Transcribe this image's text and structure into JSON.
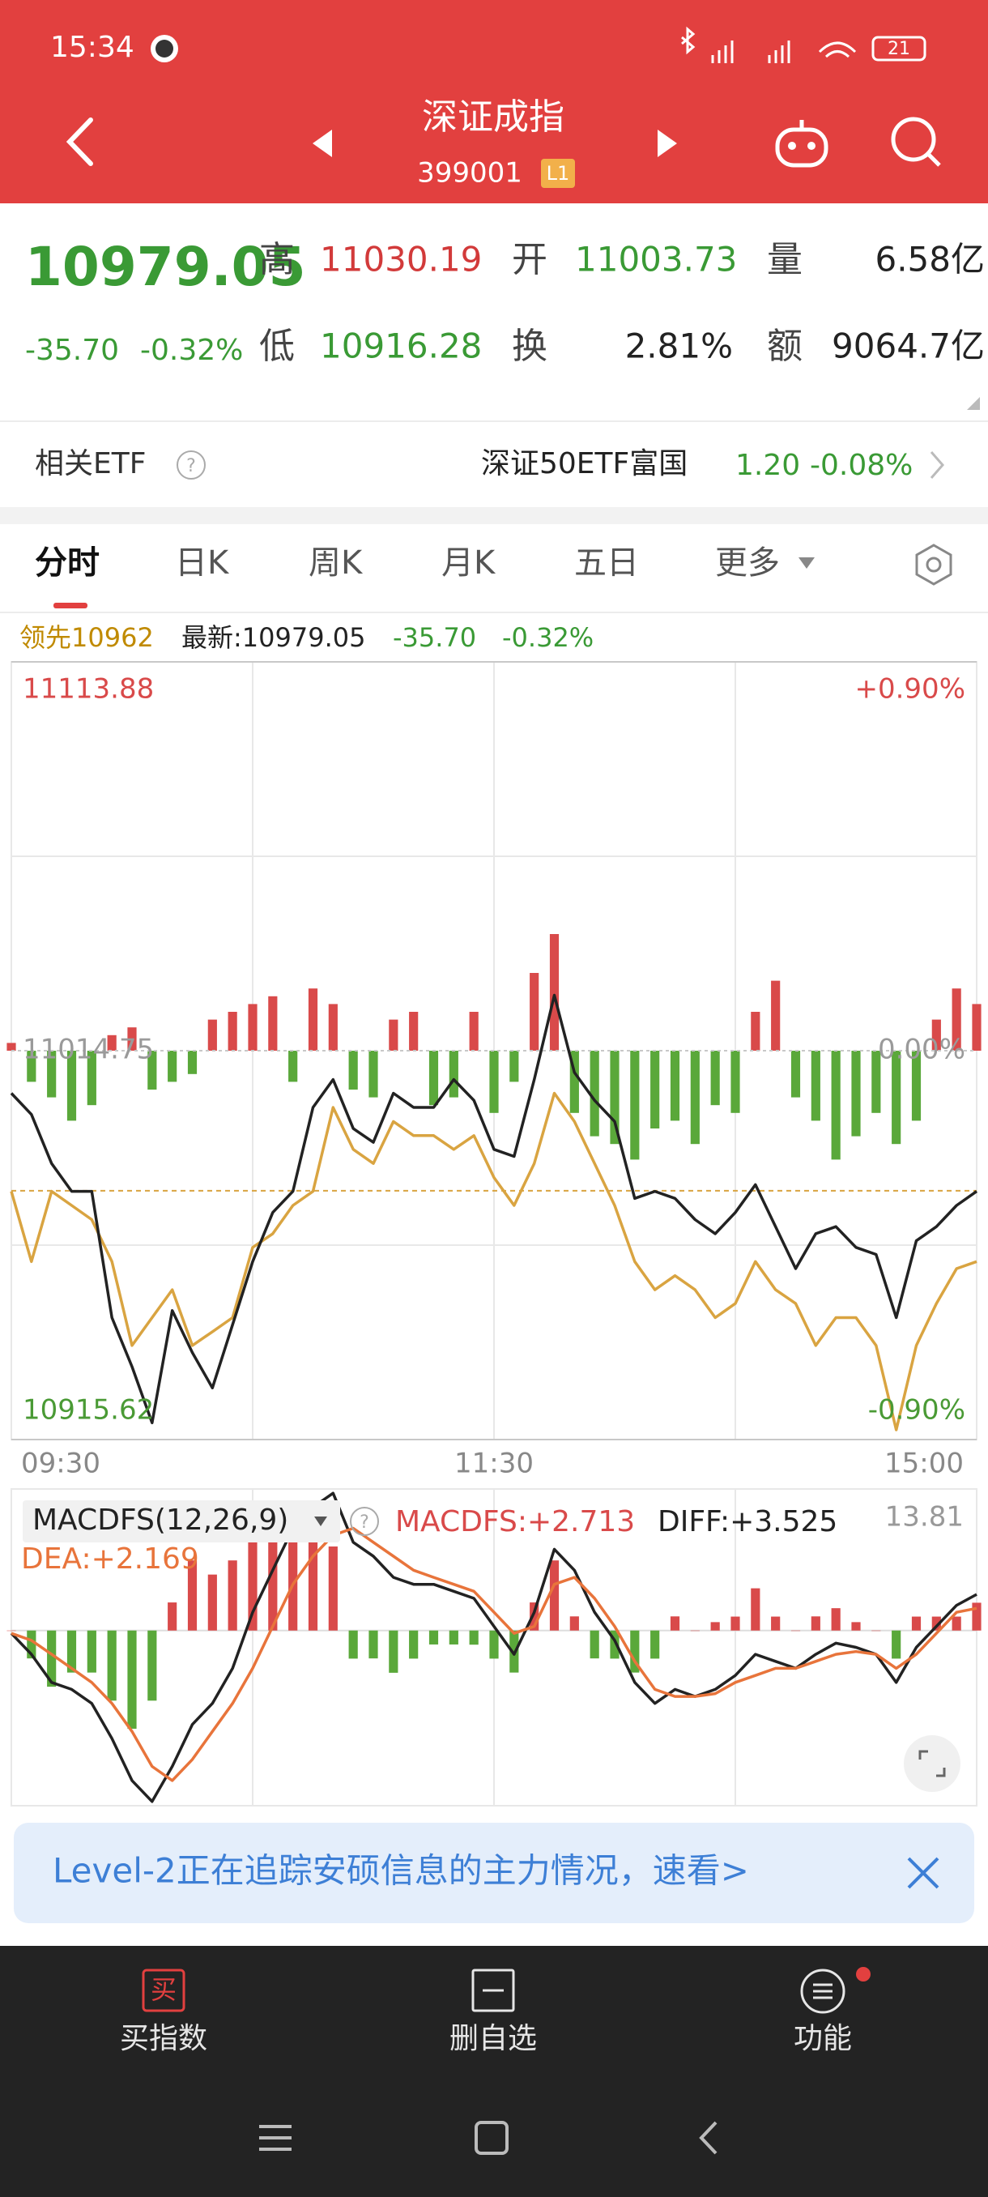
{
  "status_bar": {
    "time": "15:34",
    "battery": "21"
  },
  "header": {
    "title": "深证成指",
    "code": "399001",
    "badge": "L1"
  },
  "quote": {
    "price": "10979.05",
    "change": "-35.70",
    "change_pct": "-0.32%",
    "high_label": "高",
    "high": "11030.19",
    "open_label": "开",
    "open": "11003.73",
    "volume_label": "量",
    "volume": "6.58亿",
    "low_label": "低",
    "low": "10916.28",
    "turnover_label": "换",
    "turnover": "2.81%",
    "amount_label": "额",
    "amount": "9064.7亿"
  },
  "etf": {
    "label": "相关ETF",
    "name": "深证50ETF富国",
    "price": "1.20",
    "change_pct": "-0.08%"
  },
  "tabs": [
    "分时",
    "日K",
    "周K",
    "月K",
    "五日",
    "更多"
  ],
  "info": {
    "lead": "领先10962",
    "latest": "最新:10979.05",
    "change": "-35.70",
    "change_pct": "-0.32%"
  },
  "chart_data": [
    {
      "type": "line",
      "ylim": [
        10915.62,
        11113.88
      ],
      "yticks": [
        11113.88,
        11014.75,
        10915.62
      ],
      "tick_colors": [
        "#d94a4a",
        "#9a9a9a",
        "#4a9a35"
      ],
      "pct_ticks": [
        {
          "value": 11113.88,
          "label": "+0.90%"
        },
        {
          "value": 11014.75,
          "label": "0.00%"
        },
        {
          "value": 10915.62,
          "label": "-0.90%"
        }
      ],
      "xlabels": [
        "09:30",
        "11:30",
        "15:00"
      ],
      "ref_line": 10979.05,
      "ref_color": "#d9a441",
      "y2lim": [
        -250,
        250
      ],
      "series": [
        {
          "color": "#222222",
          "values": [
            11003.9,
            10998.5,
            10986.0,
            10978.9,
            10978.9,
            10946.7,
            10934.2,
            10919.9,
            10948.5,
            10937.8,
            10928.8,
            10944.9,
            10961.0,
            10973.5,
            10978.9,
            11000.3,
            11007.4,
            10994.9,
            10991.4,
            11003.9,
            11000.3,
            11000.3,
            11007.4,
            11002.1,
            10989.6,
            10987.8,
            11007.4,
            11028.9,
            11009.2,
            11002.1,
            10996.7,
            10977.1,
            10978.9,
            10977.1,
            10971.7,
            10968.1,
            10973.5,
            10980.6,
            10969.9,
            10959.2,
            10968.1,
            10969.9,
            10964.6,
            10962.8,
            10946.7,
            10966.3,
            10969.9,
            10975.3,
            10978.9
          ]
        },
        {
          "color": "#d9a441",
          "values": [
            10978.9,
            10961.0,
            10978.9,
            10975.3,
            10971.7,
            10961.0,
            10939.6,
            10946.7,
            10953.8,
            10939.6,
            10943.1,
            10946.7,
            10964.6,
            10968.1,
            10975.3,
            10978.9,
            11000.3,
            10989.6,
            10986.0,
            10996.7,
            10993.1,
            10993.1,
            10989.6,
            10993.1,
            10982.4,
            10975.3,
            10986.0,
            11003.9,
            10996.7,
            10986.0,
            10975.3,
            10961.0,
            10953.8,
            10957.4,
            10953.8,
            10946.7,
            10950.3,
            10961.0,
            10953.8,
            10950.3,
            10939.6,
            10946.7,
            10946.7,
            10939.6,
            10918.1,
            10939.6,
            10950.3,
            10959.2,
            10961.0
          ]
        },
        {
          "type": "bar",
          "axis": "y2",
          "up_color": "#d94a4a",
          "down_color": "#5aa83a",
          "values": [
            5,
            -20,
            -30,
            -45,
            -35,
            10,
            15,
            -25,
            -20,
            -15,
            20,
            25,
            30,
            35,
            -20,
            40,
            30,
            -25,
            -30,
            20,
            25,
            -35,
            -30,
            25,
            -40,
            -20,
            50,
            75,
            -40,
            -55,
            -60,
            -70,
            -50,
            -45,
            -60,
            -35,
            -40,
            25,
            45,
            -30,
            -45,
            -70,
            -55,
            -40,
            -60,
            -45,
            20,
            40,
            30
          ]
        }
      ]
    },
    {
      "type": "macd",
      "title": "MACDFS(12,26,9)",
      "ylim": [
        -17.09,
        13.81
      ],
      "yticks": [
        13.81
      ],
      "legend": [
        "MACDFS:+2.713",
        "DIFF:+3.525",
        "DEA:+2.169"
      ],
      "series": [
        {
          "type": "bar",
          "up_color": "#d94a4a",
          "down_color": "#5aa83a",
          "values": [
            0,
            -2.72,
            -5.48,
            -4.1,
            -4.1,
            -6.84,
            -9.58,
            -6.84,
            2.74,
            6.84,
            5.46,
            6.84,
            10.94,
            10.94,
            10.94,
            9.56,
            8.2,
            -2.74,
            -2.72,
            -4.12,
            -2.74,
            -1.36,
            -1.36,
            -1.38,
            -2.74,
            -4.1,
            2.74,
            6.84,
            1.38,
            -2.72,
            -2.74,
            -4.1,
            -2.74,
            1.38,
            0,
            0.82,
            1.36,
            4.12,
            1.36,
            0,
            1.38,
            2.18,
            0.82,
            0,
            -2.74,
            1.36,
            1.36,
            1.36,
            2.713
          ]
        },
        {
          "color": "#222222",
          "values": [
            -0.27,
            -2.32,
            -5.06,
            -5.74,
            -7.11,
            -10.53,
            -14.63,
            -16.68,
            -13.26,
            -9.16,
            -7.11,
            -3.69,
            1.78,
            5.88,
            9.98,
            12.03,
            13.4,
            8.61,
            7.25,
            5.19,
            4.51,
            4.51,
            3.83,
            3.14,
            0.41,
            -2.32,
            1.78,
            7.93,
            5.88,
            1.78,
            -0.96,
            -5.06,
            -7.11,
            -5.74,
            -6.43,
            -5.74,
            -4.38,
            -2.32,
            -3.01,
            -3.69,
            -2.32,
            -1.23,
            -1.64,
            -2.32,
            -5.06,
            -1.64,
            0.41,
            2.46,
            3.525
          ]
        },
        {
          "color": "#e8743b",
          "values": [
            -0.27,
            -0.96,
            -2.32,
            -3.69,
            -5.06,
            -7.11,
            -9.84,
            -13.26,
            -14.63,
            -12.58,
            -9.84,
            -7.11,
            -3.69,
            0.41,
            4.51,
            7.25,
            9.3,
            9.98,
            8.61,
            7.25,
            5.88,
            5.19,
            4.51,
            3.83,
            1.78,
            -0.27,
            0.41,
            4.51,
            5.19,
            3.14,
            0.41,
            -3.01,
            -5.74,
            -6.43,
            -6.43,
            -6.15,
            -5.06,
            -4.38,
            -3.69,
            -3.69,
            -3.01,
            -2.32,
            -2.05,
            -2.32,
            -3.69,
            -2.32,
            -0.27,
            1.78,
            2.169
          ]
        }
      ]
    }
  ],
  "banner": {
    "text": "Level-2正在追踪安硕信息的主力情况，速看>"
  },
  "bottom_bar": {
    "items": [
      {
        "icon": "买",
        "label": "买指数"
      },
      {
        "label": "删自选"
      },
      {
        "label": "功能"
      }
    ]
  }
}
